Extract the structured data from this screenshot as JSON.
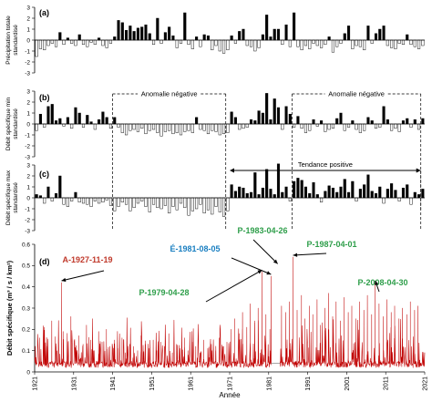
{
  "chart_data": [
    {
      "panel_label": "(a)",
      "type": "bar",
      "ylabel": "Précipitation totale standardisé",
      "ylim": [
        -3,
        3
      ],
      "yticks": [
        -3,
        -2,
        -1,
        0,
        1,
        2,
        3
      ],
      "x_range": [
        1921,
        2021
      ],
      "grid": false,
      "x": [
        1921,
        1922,
        1923,
        1924,
        1925,
        1926,
        1927,
        1928,
        1929,
        1930,
        1931,
        1932,
        1933,
        1934,
        1935,
        1936,
        1937,
        1938,
        1939,
        1940,
        1941,
        1942,
        1943,
        1944,
        1945,
        1946,
        1947,
        1948,
        1949,
        1950,
        1951,
        1952,
        1953,
        1954,
        1955,
        1956,
        1957,
        1958,
        1959,
        1960,
        1961,
        1962,
        1963,
        1964,
        1965,
        1966,
        1967,
        1968,
        1969,
        1970,
        1971,
        1972,
        1973,
        1974,
        1975,
        1976,
        1977,
        1978,
        1979,
        1980,
        1981,
        1982,
        1983,
        1984,
        1985,
        1986,
        1987,
        1988,
        1989,
        1990,
        1991,
        1992,
        1993,
        1994,
        1995,
        1996,
        1997,
        1998,
        1999,
        2000,
        2001,
        2002,
        2003,
        2004,
        2005,
        2006,
        2007,
        2008,
        2009,
        2010,
        2011,
        2012,
        2013,
        2014,
        2015,
        2016,
        2017,
        2018,
        2019,
        2020
      ],
      "values": [
        -1.5,
        -0.8,
        -0.9,
        -0.5,
        -0.3,
        -0.6,
        0.7,
        -0.4,
        0.2,
        -0.3,
        -0.5,
        0.5,
        -0.4,
        -0.6,
        -0.2,
        -0.4,
        0.2,
        -0.5,
        -0.7,
        -0.3,
        0.3,
        1.8,
        1.6,
        0.9,
        1.3,
        0.8,
        1.1,
        1.2,
        1.4,
        0.6,
        -0.4,
        2.0,
        -0.3,
        0.7,
        1.2,
        0.4,
        -0.7,
        -0.3,
        2.5,
        -0.4,
        -0.8,
        0.3,
        -0.6,
        0.5,
        0.4,
        -0.9,
        -0.5,
        -1.0,
        -1.2,
        -0.9,
        0.4,
        -0.3,
        0.8,
        1.0,
        -0.5,
        -0.6,
        -1.0,
        -0.7,
        0.5,
        2.3,
        0.3,
        1.0,
        1.0,
        -0.4,
        1.4,
        -0.6,
        2.5,
        -0.6,
        -0.9,
        -0.5,
        -0.8,
        -0.3,
        -0.5,
        -0.7,
        -0.4,
        0.3,
        -1.1,
        -0.6,
        -0.3,
        0.6,
        1.3,
        -0.8,
        -0.5,
        -0.6,
        -0.9,
        1.3,
        -0.3,
        0.6,
        1.0,
        1.3,
        -0.5,
        -0.7,
        -0.8,
        -0.3,
        -0.4,
        0.5,
        -0.4,
        -0.6,
        -0.8,
        -0.5
      ],
      "annotations": []
    },
    {
      "panel_label": "(b)",
      "type": "bar",
      "ylabel": "Débit spécifique min standardisé",
      "ylim": [
        -3,
        3
      ],
      "yticks": [
        -3,
        -2,
        -1,
        0,
        1,
        2,
        3
      ],
      "x_range": [
        1921,
        2021
      ],
      "grid": false,
      "x": [
        1921,
        1922,
        1923,
        1924,
        1925,
        1926,
        1927,
        1928,
        1929,
        1930,
        1931,
        1932,
        1933,
        1934,
        1935,
        1936,
        1937,
        1938,
        1939,
        1940,
        1941,
        1942,
        1943,
        1944,
        1945,
        1946,
        1947,
        1948,
        1949,
        1950,
        1951,
        1952,
        1953,
        1954,
        1955,
        1956,
        1957,
        1958,
        1959,
        1960,
        1961,
        1962,
        1963,
        1964,
        1965,
        1966,
        1967,
        1968,
        1969,
        1970,
        1971,
        1972,
        1973,
        1974,
        1975,
        1976,
        1977,
        1978,
        1979,
        1980,
        1981,
        1982,
        1983,
        1984,
        1985,
        1986,
        1987,
        1988,
        1989,
        1990,
        1991,
        1992,
        1993,
        1994,
        1995,
        1996,
        1997,
        1998,
        1999,
        2000,
        2001,
        2002,
        2003,
        2004,
        2005,
        2006,
        2007,
        2008,
        2009,
        2010,
        2011,
        2012,
        2013,
        2014,
        2015,
        2016,
        2017,
        2018,
        2019,
        2020
      ],
      "values": [
        -0.6,
        0.9,
        -0.3,
        1.6,
        1.8,
        0.3,
        0.5,
        -0.2,
        0.6,
        -0.4,
        1.5,
        1.0,
        -0.3,
        0.8,
        0.2,
        -0.5,
        0.4,
        1.1,
        0.6,
        -0.4,
        0.6,
        -0.3,
        -0.8,
        -1.0,
        -0.6,
        -0.5,
        -0.7,
        -0.4,
        -0.9,
        -0.6,
        -0.5,
        -0.8,
        -1.1,
        -0.7,
        -0.6,
        -0.9,
        -0.8,
        -1.0,
        -0.7,
        -0.6,
        -0.8,
        0.6,
        -0.5,
        -0.6,
        -0.9,
        -0.6,
        -0.7,
        -1.0,
        -0.9,
        -0.8,
        1.1,
        0.6,
        -0.5,
        -0.4,
        -0.3,
        0.4,
        0.3,
        1.2,
        1.0,
        2.8,
        0.4,
        2.3,
        1.5,
        -0.5,
        1.6,
        0.9,
        -0.3,
        0.7,
        -0.4,
        -0.8,
        -0.6,
        0.4,
        -0.2,
        0.3,
        -0.7,
        -0.5,
        -0.4,
        0.5,
        1.0,
        -0.6,
        -0.3,
        0.3,
        -0.5,
        -0.8,
        -0.6,
        0.6,
        0.3,
        -0.4,
        -0.3,
        1.6,
        0.4,
        -0.6,
        -0.4,
        -0.7,
        0.3,
        0.5,
        -0.3,
        0.4,
        -0.5,
        0.5
      ],
      "annotations": [
        {
          "text": "Anomalie négative",
          "from": 1941,
          "to": 1970
        },
        {
          "text": "Anomalie négative",
          "from": 1987,
          "to": 2020
        }
      ]
    },
    {
      "panel_label": "(c)",
      "type": "bar",
      "ylabel": "Débit spécifique max standardisé",
      "ylim": [
        -3,
        3
      ],
      "yticks": [
        -3,
        -2,
        -1,
        0,
        1,
        2,
        3
      ],
      "x_range": [
        1921,
        2021
      ],
      "grid": false,
      "x": [
        1921,
        1922,
        1923,
        1924,
        1925,
        1926,
        1927,
        1928,
        1929,
        1930,
        1931,
        1932,
        1933,
        1934,
        1935,
        1936,
        1937,
        1938,
        1939,
        1940,
        1941,
        1942,
        1943,
        1944,
        1945,
        1946,
        1947,
        1948,
        1949,
        1950,
        1951,
        1952,
        1953,
        1954,
        1955,
        1956,
        1957,
        1958,
        1959,
        1960,
        1961,
        1962,
        1963,
        1964,
        1965,
        1966,
        1967,
        1968,
        1969,
        1970,
        1971,
        1972,
        1973,
        1974,
        1975,
        1976,
        1977,
        1978,
        1979,
        1980,
        1981,
        1982,
        1983,
        1984,
        1985,
        1986,
        1987,
        1988,
        1989,
        1990,
        1991,
        1992,
        1993,
        1994,
        1995,
        1996,
        1997,
        1998,
        1999,
        2000,
        2001,
        2002,
        2003,
        2004,
        2005,
        2006,
        2007,
        2008,
        2009,
        2010,
        2011,
        2012,
        2013,
        2014,
        2015,
        2016,
        2017,
        2018,
        2019,
        2020
      ],
      "values": [
        0.3,
        0.2,
        -0.5,
        1.0,
        -0.3,
        0.4,
        2.0,
        -0.6,
        -0.8,
        -0.3,
        0.5,
        -0.4,
        -0.5,
        -0.6,
        -0.8,
        -0.3,
        -0.5,
        -0.4,
        -0.2,
        -0.7,
        -1.2,
        -0.8,
        -0.4,
        -0.6,
        -1.2,
        -0.9,
        -0.5,
        -0.3,
        -0.8,
        -1.3,
        -0.6,
        -0.9,
        -1.0,
        -0.7,
        -1.4,
        -0.8,
        -1.1,
        -0.5,
        -0.9,
        -1.6,
        -1.2,
        -1.0,
        -0.6,
        -1.4,
        -1.1,
        -1.5,
        -0.8,
        -1.3,
        -1.7,
        -1.2,
        1.2,
        0.6,
        1.0,
        0.9,
        0.4,
        0.5,
        2.3,
        0.3,
        0.9,
        2.6,
        0.8,
        0.3,
        3.1,
        0.5,
        1.0,
        -0.3,
        1.5,
        1.8,
        1.6,
        1.0,
        0.4,
        1.4,
        0.3,
        -0.4,
        0.6,
        1.1,
        0.9,
        0.5,
        1.0,
        1.7,
        0.5,
        1.5,
        -0.3,
        0.8,
        1.2,
        2.1,
        0.6,
        0.4,
        1.0,
        -0.5,
        0.8,
        1.3,
        0.7,
        -0.3,
        0.9,
        1.2,
        -0.6,
        0.5,
        0.3,
        0.8
      ],
      "annotations": [
        {
          "text": "Tendance positive",
          "from": 1971,
          "to": 2020
        }
      ]
    },
    {
      "panel_label": "(d)",
      "type": "line",
      "color": "#c00000",
      "ylabel": "Débit spécifique (m³ / s / km²)",
      "xlabel": "Année",
      "ylim": [
        0,
        0.6
      ],
      "yticks": [
        0,
        0.1,
        0.2,
        0.3,
        0.4,
        0.5,
        0.6
      ],
      "x_range": [
        1921,
        2021
      ],
      "xticks": [
        "1921",
        "1931",
        "1941",
        "1951",
        "1961",
        "1971",
        "1981",
        "1991",
        "2001",
        "2011",
        "2021"
      ],
      "grid": false,
      "gap": [
        1981.6,
        1983.9
      ],
      "baseline_range": [
        0.02,
        0.05
      ],
      "seasonal_peaks": [
        {
          "x": 1922.3,
          "y": 0.16
        },
        {
          "x": 1923.4,
          "y": 0.21
        },
        {
          "x": 1924.3,
          "y": 0.12
        },
        {
          "x": 1925.4,
          "y": 0.24
        },
        {
          "x": 1926.3,
          "y": 0.15
        },
        {
          "x": 1928.3,
          "y": 0.19
        },
        {
          "x": 1929.4,
          "y": 0.14
        },
        {
          "x": 1930.3,
          "y": 0.26
        },
        {
          "x": 1931.4,
          "y": 0.11
        },
        {
          "x": 1932.3,
          "y": 0.17
        },
        {
          "x": 1933.4,
          "y": 0.13
        },
        {
          "x": 1934.3,
          "y": 0.22
        },
        {
          "x": 1935.4,
          "y": 0.15
        },
        {
          "x": 1936.3,
          "y": 0.1
        },
        {
          "x": 1937.4,
          "y": 0.19
        },
        {
          "x": 1938.3,
          "y": 0.14
        },
        {
          "x": 1939.4,
          "y": 0.2
        },
        {
          "x": 1940.3,
          "y": 0.12
        },
        {
          "x": 1941.4,
          "y": 0.15
        },
        {
          "x": 1942.3,
          "y": 0.11
        },
        {
          "x": 1943.4,
          "y": 0.16
        },
        {
          "x": 1944.3,
          "y": 0.09
        },
        {
          "x": 1945.4,
          "y": 0.13
        },
        {
          "x": 1946.3,
          "y": 0.12
        },
        {
          "x": 1947.4,
          "y": 0.1
        },
        {
          "x": 1948.3,
          "y": 0.17
        },
        {
          "x": 1949.4,
          "y": 0.13
        },
        {
          "x": 1950.3,
          "y": 0.11
        },
        {
          "x": 1951.4,
          "y": 0.15
        },
        {
          "x": 1952.3,
          "y": 0.1
        },
        {
          "x": 1953.4,
          "y": 0.14
        },
        {
          "x": 1954.3,
          "y": 0.12
        },
        {
          "x": 1955.4,
          "y": 0.18
        },
        {
          "x": 1956.3,
          "y": 0.09
        },
        {
          "x": 1957.4,
          "y": 0.13
        },
        {
          "x": 1958.3,
          "y": 0.11
        },
        {
          "x": 1959.4,
          "y": 0.16
        },
        {
          "x": 1960.3,
          "y": 0.1
        },
        {
          "x": 1961.4,
          "y": 0.14
        },
        {
          "x": 1962.3,
          "y": 0.12
        },
        {
          "x": 1963.4,
          "y": 0.09
        },
        {
          "x": 1964.3,
          "y": 0.15
        },
        {
          "x": 1965.4,
          "y": 0.11
        },
        {
          "x": 1966.3,
          "y": 0.13
        },
        {
          "x": 1967.4,
          "y": 0.1
        },
        {
          "x": 1968.3,
          "y": 0.16
        },
        {
          "x": 1969.4,
          "y": 0.12
        },
        {
          "x": 1970.3,
          "y": 0.14
        },
        {
          "x": 1971.4,
          "y": 0.2
        },
        {
          "x": 1972.3,
          "y": 0.25
        },
        {
          "x": 1973.4,
          "y": 0.18
        },
        {
          "x": 1974.3,
          "y": 0.28
        },
        {
          "x": 1975.4,
          "y": 0.21
        },
        {
          "x": 1976.3,
          "y": 0.32
        },
        {
          "x": 1977.4,
          "y": 0.24
        },
        {
          "x": 1978.3,
          "y": 0.3
        },
        {
          "x": 1980.3,
          "y": 0.27
        },
        {
          "x": 1981.3,
          "y": 0.2
        },
        {
          "x": 1984.3,
          "y": 0.31
        },
        {
          "x": 1985.4,
          "y": 0.28
        },
        {
          "x": 1986.3,
          "y": 0.33
        },
        {
          "x": 1988.3,
          "y": 0.29
        },
        {
          "x": 1989.4,
          "y": 0.36
        },
        {
          "x": 1990.3,
          "y": 0.25
        },
        {
          "x": 1991.4,
          "y": 0.31
        },
        {
          "x": 1992.3,
          "y": 0.27
        },
        {
          "x": 1993.4,
          "y": 0.34
        },
        {
          "x": 1994.3,
          "y": 0.22
        },
        {
          "x": 1995.4,
          "y": 0.3
        },
        {
          "x": 1996.3,
          "y": 0.37
        },
        {
          "x": 1997.4,
          "y": 0.26
        },
        {
          "x": 1998.3,
          "y": 0.33
        },
        {
          "x": 1999.4,
          "y": 0.24
        },
        {
          "x": 2000.3,
          "y": 0.35
        },
        {
          "x": 2001.4,
          "y": 0.28
        },
        {
          "x": 2002.3,
          "y": 0.31
        },
        {
          "x": 2003.4,
          "y": 0.25
        },
        {
          "x": 2004.3,
          "y": 0.33
        },
        {
          "x": 2005.4,
          "y": 0.29
        },
        {
          "x": 2006.3,
          "y": 0.36
        },
        {
          "x": 2007.4,
          "y": 0.27
        },
        {
          "x": 2009.3,
          "y": 0.32
        },
        {
          "x": 2010.4,
          "y": 0.26
        },
        {
          "x": 2011.3,
          "y": 0.34
        },
        {
          "x": 2012.4,
          "y": 0.28
        },
        {
          "x": 2013.3,
          "y": 0.31
        },
        {
          "x": 2014.4,
          "y": 0.25
        },
        {
          "x": 2015.3,
          "y": 0.3
        },
        {
          "x": 2016.4,
          "y": 0.27
        },
        {
          "x": 2017.3,
          "y": 0.33
        },
        {
          "x": 2018.4,
          "y": 0.29
        },
        {
          "x": 2019.3,
          "y": 0.31
        }
      ],
      "events": [
        {
          "label": "A-1927-11-19",
          "x": 1927.9,
          "y": 0.42,
          "color": "#c0392b"
        },
        {
          "label": "P-1979-04-28",
          "x": 1979.3,
          "y": 0.47,
          "color": "#2e9e4a"
        },
        {
          "label": "É-1981-08-05",
          "x": 1981.6,
          "y": 0.45,
          "color": "#1a7fc1"
        },
        {
          "label": "P-1983-04-26",
          "x": 1983.3,
          "y": 0.5,
          "color": "#2e9e4a"
        },
        {
          "label": "P-1987-04-01",
          "x": 1987.25,
          "y": 0.54,
          "color": "#2e9e4a"
        },
        {
          "label": "P-2008-04-30",
          "x": 2008.3,
          "y": 0.42,
          "color": "#2e9e4a"
        }
      ]
    }
  ]
}
